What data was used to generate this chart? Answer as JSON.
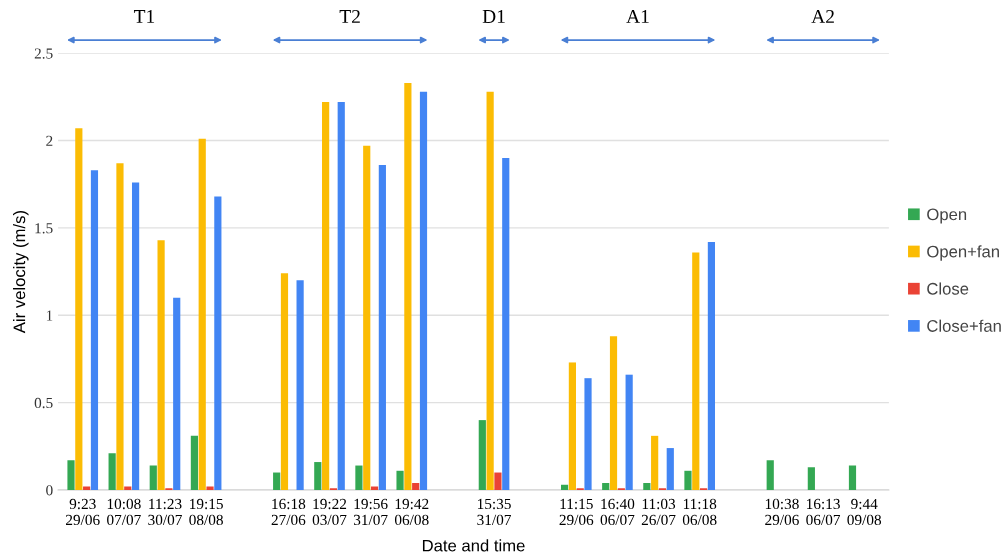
{
  "chart_data": {
    "type": "bar",
    "xlabel": "Date and time",
    "ylabel": "Air velocity (m/s)",
    "categories": [
      "9:23\n29/06",
      "10:08\n07/07",
      "11:23\n30/07",
      "19:15\n08/08",
      null,
      "16:18\n27/06",
      "19:22\n03/07",
      "19:56\n31/07",
      "19:42\n06/08",
      null,
      "15:35\n31/07",
      null,
      "11:15\n29/06",
      "16:40\n06/07",
      "11:03\n26/07",
      "11:18\n06/08",
      null,
      "10:38\n29/06",
      "16:13\n06/07",
      "9:44\n09/08"
    ],
    "series": [
      {
        "name": "Open",
        "color": "#34a853",
        "values": [
          0.17,
          0.21,
          0.14,
          0.31,
          null,
          0.1,
          0.16,
          0.14,
          0.11,
          null,
          0.4,
          null,
          0.03,
          0.04,
          0.04,
          0.11,
          null,
          0.17,
          0.13,
          0.14
        ]
      },
      {
        "name": "Open+fan",
        "color": "#fbbc04",
        "values": [
          2.07,
          1.87,
          1.43,
          2.01,
          null,
          1.24,
          2.22,
          1.97,
          2.33,
          null,
          2.28,
          null,
          0.73,
          0.88,
          0.31,
          1.36,
          null,
          null,
          null,
          null
        ]
      },
      {
        "name": "Close",
        "color": "#ea4335",
        "values": [
          0.02,
          0.02,
          0.01,
          0.02,
          null,
          null,
          0.01,
          0.02,
          0.04,
          null,
          0.1,
          null,
          0.01,
          0.01,
          0.01,
          0.01,
          null,
          null,
          null,
          null
        ]
      },
      {
        "name": "Close+fan",
        "color": "#4285f4",
        "values": [
          1.83,
          1.76,
          1.1,
          1.68,
          null,
          1.2,
          2.22,
          1.86,
          2.28,
          null,
          1.9,
          null,
          0.64,
          0.66,
          0.24,
          1.42,
          null,
          null,
          null,
          null
        ]
      }
    ],
    "annotations": [
      "T1",
      "T2",
      "D1",
      "A1",
      "A2"
    ],
    "ylim": [
      0,
      2.5
    ],
    "yticks": [
      0,
      0.5,
      1,
      1.5,
      2,
      2.5
    ],
    "grid": "y",
    "legend": "right"
  }
}
